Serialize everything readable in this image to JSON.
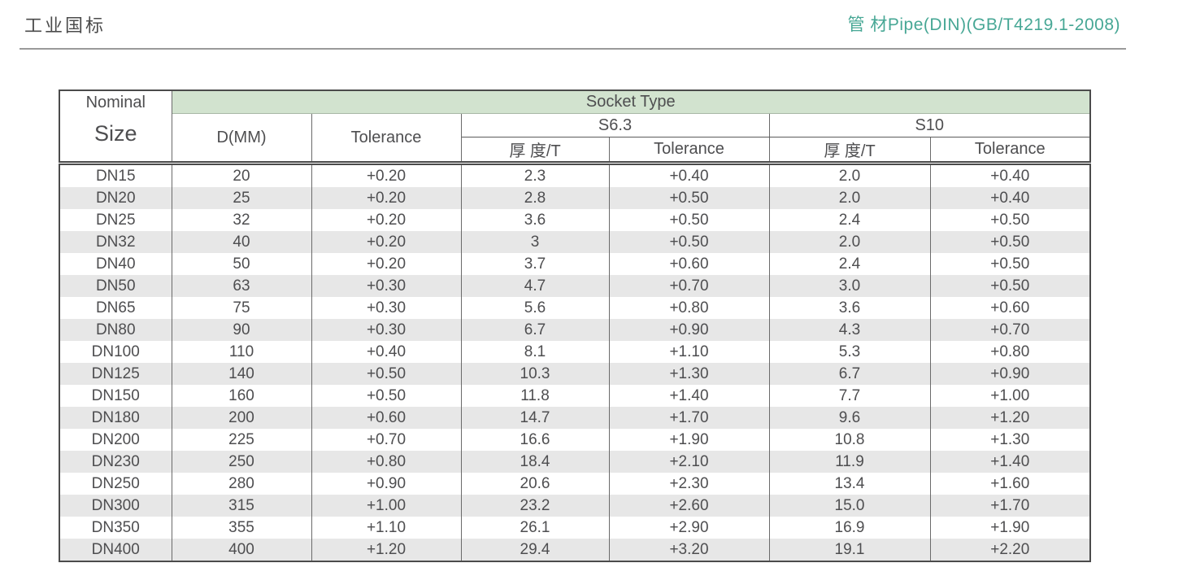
{
  "header": {
    "title_left": "工业国标",
    "title_right": "管 材Pipe(DIN)(GB/T4219.1-2008)"
  },
  "colors": {
    "accent_teal": "#47a795",
    "socket_band_green": "#d2e3cf",
    "row_alt_gray": "#e7e7e7",
    "text_gray": "#4e4e50"
  },
  "table": {
    "head": {
      "nominal_line1": "Nominal",
      "nominal_line2": "Size",
      "socket_type": "Socket Type",
      "d_mm": "D(MM)",
      "tolerance": "Tolerance",
      "s63": "S6.3",
      "s10": "S10",
      "thickness_t": "厚 度/T",
      "sub_tolerance": "Tolerance"
    },
    "rows": [
      [
        "DN15",
        "20",
        "+0.20",
        "2.3",
        "+0.40",
        "2.0",
        "+0.40"
      ],
      [
        "DN20",
        "25",
        "+0.20",
        "2.8",
        "+0.50",
        "2.0",
        "+0.40"
      ],
      [
        "DN25",
        "32",
        "+0.20",
        "3.6",
        "+0.50",
        "2.4",
        "+0.50"
      ],
      [
        "DN32",
        "40",
        "+0.20",
        "3",
        "+0.50",
        "2.0",
        "+0.50"
      ],
      [
        "DN40",
        "50",
        "+0.20",
        "3.7",
        "+0.60",
        "2.4",
        "+0.50"
      ],
      [
        "DN50",
        "63",
        "+0.30",
        "4.7",
        "+0.70",
        "3.0",
        "+0.50"
      ],
      [
        "DN65",
        "75",
        "+0.30",
        "5.6",
        "+0.80",
        "3.6",
        "+0.60"
      ],
      [
        "DN80",
        "90",
        "+0.30",
        "6.7",
        "+0.90",
        "4.3",
        "+0.70"
      ],
      [
        "DN100",
        "110",
        "+0.40",
        "8.1",
        "+1.10",
        "5.3",
        "+0.80"
      ],
      [
        "DN125",
        "140",
        "+0.50",
        "10.3",
        "+1.30",
        "6.7",
        "+0.90"
      ],
      [
        "DN150",
        "160",
        "+0.50",
        "11.8",
        "+1.40",
        "7.7",
        "+1.00"
      ],
      [
        "DN180",
        "200",
        "+0.60",
        "14.7",
        "+1.70",
        "9.6",
        "+1.20"
      ],
      [
        "DN200",
        "225",
        "+0.70",
        "16.6",
        "+1.90",
        "10.8",
        "+1.30"
      ],
      [
        "DN230",
        "250",
        "+0.80",
        "18.4",
        "+2.10",
        "11.9",
        "+1.40"
      ],
      [
        "DN250",
        "280",
        "+0.90",
        "20.6",
        "+2.30",
        "13.4",
        "+1.60"
      ],
      [
        "DN300",
        "315",
        "+1.00",
        "23.2",
        "+2.60",
        "15.0",
        "+1.70"
      ],
      [
        "DN350",
        "355",
        "+1.10",
        "26.1",
        "+2.90",
        "16.9",
        "+1.90"
      ],
      [
        "DN400",
        "400",
        "+1.20",
        "29.4",
        "+3.20",
        "19.1",
        "+2.20"
      ]
    ]
  }
}
